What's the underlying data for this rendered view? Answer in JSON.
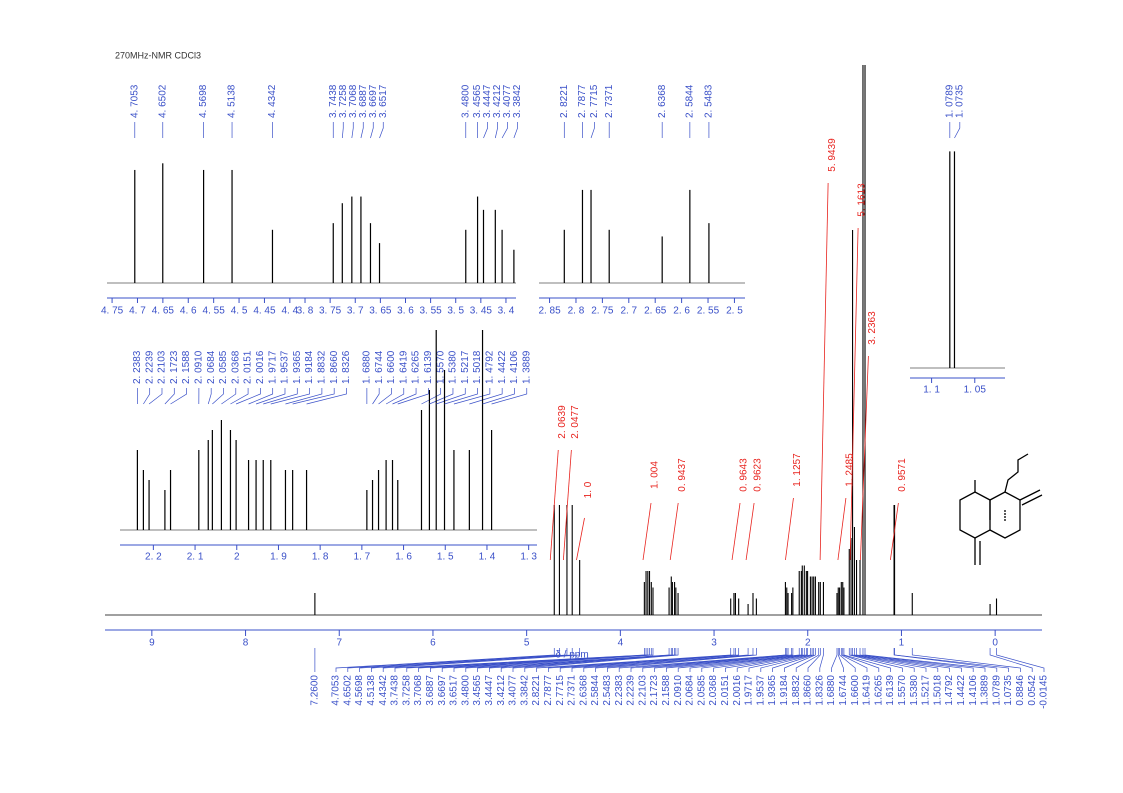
{
  "chart_data": {
    "type": "spectrum",
    "title": "270MHz-NMR CDCl3",
    "x_label": "δ / ppm",
    "xlim": [
      9.5,
      -0.5
    ],
    "xticks": [
      9,
      8,
      7,
      6,
      5,
      4,
      3,
      2,
      1,
      0
    ],
    "ylim": [
      0,
      100
    ],
    "color": "#000000",
    "label_color": "#3a50c8",
    "integral_color": "#e8231e",
    "peaks": {
      "x": [
        7.26,
        4.7053,
        4.6502,
        4.5698,
        4.5138,
        4.4342,
        3.7438,
        3.7258,
        3.7068,
        3.6887,
        3.6697,
        3.6517,
        3.48,
        3.4565,
        3.4447,
        3.4212,
        3.4077,
        3.3842,
        2.8221,
        2.7877,
        2.7715,
        2.7371,
        2.6368,
        2.5844,
        2.5483,
        2.2383,
        2.2239,
        2.2103,
        2.1723,
        2.1588,
        2.091,
        2.0684,
        2.0585,
        2.0368,
        2.0151,
        2.0016,
        1.9717,
        1.9537,
        1.9365,
        1.9184,
        1.8832,
        1.866,
        1.8326,
        1.688,
        1.6744,
        1.66,
        1.6419,
        1.6265,
        1.6139,
        1.557,
        1.538,
        1.5217,
        1.5018,
        1.4792,
        1.4422,
        1.4106,
        1.3889,
        1.0789,
        1.0735,
        0.8846,
        0.0542,
        -0.0145
      ],
      "heights": [
        4,
        20,
        20,
        20,
        20,
        10,
        6,
        8,
        8,
        8,
        6,
        5,
        5,
        7,
        6,
        6,
        5,
        4,
        3,
        4,
        4,
        3,
        2,
        4,
        3,
        6,
        5,
        4,
        4,
        5,
        8,
        8,
        9,
        9,
        8,
        8,
        7,
        7,
        7,
        7,
        6,
        6,
        6,
        4,
        5,
        5,
        6,
        6,
        5,
        12,
        14,
        70,
        16,
        10,
        10,
        100,
        100,
        20,
        20,
        4,
        2,
        3
      ],
      "x_labels": [
        "7.2600",
        "4.7053",
        "4.6502",
        "4.5698",
        "4.5138",
        "4.4342",
        "3.7438",
        "3.7258",
        "3.7068",
        "3.6887",
        "3.6697",
        "3.6517",
        "3.4800",
        "3.4565",
        "3.4447",
        "3.4212",
        "3.4077",
        "3.3842",
        "2.8221",
        "2.7877",
        "2.7715",
        "2.7371",
        "2.6368",
        "2.5844",
        "2.5483",
        "2.2383",
        "2.2239",
        "2.2103",
        "2.1723",
        "2.1588",
        "2.0910",
        "2.0684",
        "2.0585",
        "2.0368",
        "2.0151",
        "2.0016",
        "1.9717",
        "1.9537",
        "1.9365",
        "1.9184",
        "1.8832",
        "1.8660",
        "1.8326",
        "1.6880",
        "1.6744",
        "1.6600",
        "1.6419",
        "1.6265",
        "1.6139",
        "1.5570",
        "1.5380",
        "1.5217",
        "1.5018",
        "1.4792",
        "1.4422",
        "1.4106",
        "1.3889",
        "1.0789",
        "1.0735",
        "0.8846",
        "0.0542",
        "-0.0145"
      ]
    },
    "integrals": {
      "x": [
        4.62,
        4.48,
        4.34,
        3.63,
        3.34,
        2.68,
        2.53,
        2.11,
        1.74,
        1.55,
        1.42,
        1.31,
        0.99
      ],
      "values": [
        2.0639,
        2.0477,
        1.0,
        1.004,
        0.9437,
        0.9643,
        0.9623,
        1.1257,
        5.9439,
        1.2485,
        5.1613,
        3.2363,
        0.9571
      ],
      "value_labels": [
        "2. 0639",
        "2. 0477",
        "1. 0",
        "1. 004",
        "0. 9437",
        "0. 9643",
        "0. 9623",
        "1. 1257",
        "5. 9439",
        "1. 2485",
        "5. 1613",
        "3. 2363",
        "0. 9571"
      ]
    },
    "insets": [
      {
        "xlim": [
          4.76,
          4.38
        ],
        "ylim": [
          0,
          100
        ],
        "xticks": [
          {
            "value": 4.75,
            "label": "4. 75"
          },
          {
            "value": 4.7,
            "label": "4. 7"
          },
          {
            "value": 4.65,
            "label": "4. 65"
          },
          {
            "value": 4.6,
            "label": "4. 6"
          },
          {
            "value": 4.55,
            "label": "4. 55"
          },
          {
            "value": 4.5,
            "label": "4. 5"
          },
          {
            "value": 4.45,
            "label": "4. 45"
          },
          {
            "value": 4.4,
            "label": "4. 4"
          }
        ],
        "peaks": {
          "x": [
            4.7053,
            4.6502,
            4.5698,
            4.5138,
            4.4342
          ],
          "heights": [
            85,
            90,
            85,
            85,
            40
          ],
          "x_labels": [
            "4. 7053",
            "4. 6502",
            "4. 5698",
            "4. 5138",
            "4. 4342"
          ]
        }
      },
      {
        "xlim": [
          3.81,
          3.38
        ],
        "ylim": [
          0,
          100
        ],
        "xticks": [
          {
            "value": 3.8,
            "label": "3. 8"
          },
          {
            "value": 3.75,
            "label": "3. 75"
          },
          {
            "value": 3.7,
            "label": "3. 7"
          },
          {
            "value": 3.65,
            "label": "3. 65"
          },
          {
            "value": 3.6,
            "label": "3. 6"
          },
          {
            "value": 3.55,
            "label": "3. 55"
          },
          {
            "value": 3.5,
            "label": "3. 5"
          },
          {
            "value": 3.45,
            "label": "3. 45"
          },
          {
            "value": 3.4,
            "label": "3. 4"
          }
        ],
        "peaks": {
          "x": [
            3.7438,
            3.7258,
            3.7068,
            3.6887,
            3.6697,
            3.6517,
            3.48,
            3.4565,
            3.4447,
            3.4212,
            3.4077,
            3.3842
          ],
          "heights": [
            45,
            60,
            65,
            65,
            45,
            30,
            40,
            65,
            55,
            55,
            40,
            25
          ],
          "x_labels": [
            "3. 7438",
            "3. 7258",
            "3. 7068",
            "3. 6887",
            "3. 6697",
            "3. 6517",
            "3. 4800",
            "3. 4565",
            "3. 4447",
            "3. 4212",
            "3. 4077",
            "3. 3842"
          ]
        }
      },
      {
        "xlim": [
          2.87,
          2.48
        ],
        "ylim": [
          0,
          100
        ],
        "xticks": [
          {
            "value": 2.85,
            "label": "2. 85"
          },
          {
            "value": 2.8,
            "label": "2. 8"
          },
          {
            "value": 2.75,
            "label": "2. 75"
          },
          {
            "value": 2.7,
            "label": "2. 7"
          },
          {
            "value": 2.65,
            "label": "2. 65"
          },
          {
            "value": 2.6,
            "label": "2. 6"
          },
          {
            "value": 2.55,
            "label": "2. 55"
          },
          {
            "value": 2.5,
            "label": "2. 5"
          }
        ],
        "peaks": {
          "x": [
            2.8221,
            2.7877,
            2.7715,
            2.7371,
            2.6368,
            2.5844,
            2.5483
          ],
          "heights": [
            40,
            70,
            70,
            40,
            35,
            70,
            45
          ],
          "x_labels": [
            "2. 8221",
            "2. 7877",
            "2. 7715",
            "2. 7371",
            "2. 6368",
            "2. 5844",
            "2. 5483"
          ]
        }
      },
      {
        "xlim": [
          1.125,
          1.015
        ],
        "ylim": [
          0,
          100
        ],
        "xticks": [
          {
            "value": 1.1,
            "label": "1. 1"
          },
          {
            "value": 1.05,
            "label": "1. 05"
          }
        ],
        "peaks": {
          "x": [
            1.0789,
            1.0735
          ],
          "heights": [
            95,
            95
          ],
          "x_labels": [
            "1. 0789",
            "1. 0735"
          ]
        }
      },
      {
        "xlim": [
          2.28,
          1.28
        ],
        "ylim": [
          0,
          100
        ],
        "xticks": [
          {
            "value": 2.2,
            "label": "2. 2"
          },
          {
            "value": 2.1,
            "label": "2. 1"
          },
          2,
          {
            "value": 1.9,
            "label": "1. 9"
          },
          {
            "value": 1.8,
            "label": "1. 8"
          },
          {
            "value": 1.7,
            "label": "1. 7"
          },
          {
            "value": 1.6,
            "label": "1. 6"
          },
          {
            "value": 1.5,
            "label": "1. 5"
          },
          {
            "value": 1.4,
            "label": "1. 4"
          },
          {
            "value": 1.3,
            "label": "1. 3"
          }
        ],
        "peaks": {
          "x": [
            2.2383,
            2.2239,
            2.2103,
            2.1723,
            2.1588,
            2.091,
            2.0684,
            2.0585,
            2.0368,
            2.0151,
            2.0016,
            1.9717,
            1.9537,
            1.9365,
            1.9184,
            1.8832,
            1.866,
            1.8326,
            1.688,
            1.6744,
            1.66,
            1.6419,
            1.6265,
            1.6139,
            1.557,
            1.538,
            1.5217,
            1.5018,
            1.4792,
            1.4422,
            1.4106,
            1.3889
          ],
          "heights": [
            40,
            30,
            25,
            20,
            30,
            40,
            45,
            50,
            55,
            50,
            45,
            35,
            35,
            35,
            35,
            30,
            30,
            30,
            20,
            25,
            30,
            35,
            35,
            25,
            60,
            70,
            100,
            80,
            40,
            40,
            100,
            50
          ],
          "x_labels": [
            "2. 2383",
            "2. 2239",
            "2. 2103",
            "2. 1723",
            "2. 1588",
            "2. 0910",
            "2. 0684",
            "2. 0585",
            "2. 0368",
            "2. 0151",
            "2. 0016",
            "1. 9717",
            "1. 9537",
            "1. 9365",
            "1. 9184",
            "1. 8832",
            "1. 8660",
            "1. 8326",
            "1. 6880",
            "1. 6744",
            "1. 6600",
            "1. 6419",
            "1. 6265",
            "1. 6139",
            "1. 5570",
            "1. 5380",
            "1. 5217",
            "1. 5018",
            "1. 4792",
            "1. 4422",
            "1. 4106",
            "1. 3889"
          ]
        }
      }
    ]
  }
}
